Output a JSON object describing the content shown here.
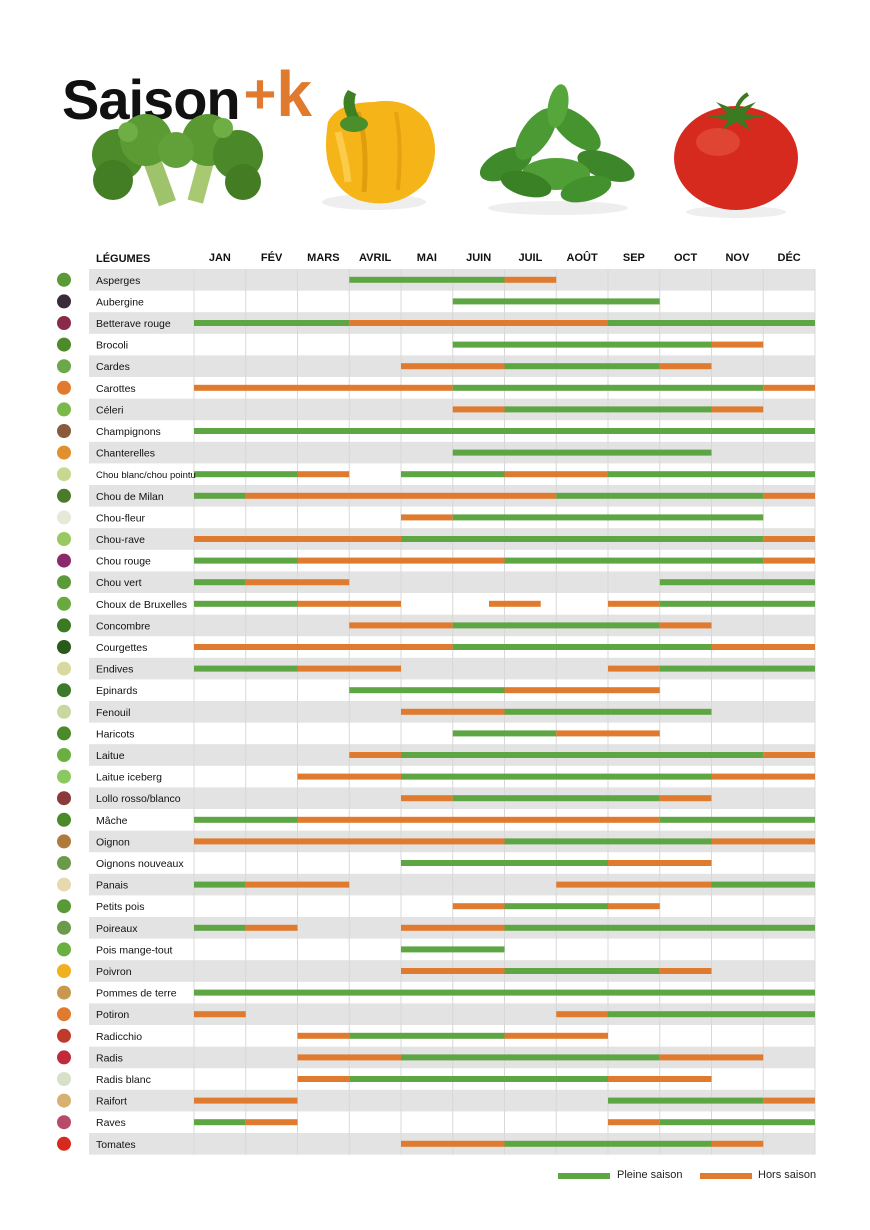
{
  "brand": {
    "word": "Saison",
    "plus": "+",
    "k": "k"
  },
  "images": [
    {
      "name": "broccoli",
      "icon": "broccoli-image"
    },
    {
      "name": "yellow-pepper",
      "icon": "pepper-image"
    },
    {
      "name": "lambs-lettuce",
      "icon": "salad-image"
    },
    {
      "name": "tomato",
      "icon": "tomato-image"
    }
  ],
  "colors": {
    "pleine": "#5ea544",
    "hors": "#e07a2e",
    "row_alt": "#e3e3e3",
    "grid": "#ffffff"
  },
  "chart_data": {
    "type": "table",
    "header": "LÉGUMES",
    "months": [
      "JAN",
      "FÉV",
      "MARS",
      "AVRIL",
      "MAI",
      "JUIN",
      "JUIL",
      "AOÛT",
      "SEP",
      "OCT",
      "NOV",
      "DÉC"
    ],
    "legend": {
      "pleine": "Pleine saison",
      "hors": "Hors saison"
    },
    "rows": [
      {
        "name": "Asperges",
        "segments": [
          {
            "s": 3,
            "e": 6,
            "t": "g"
          },
          {
            "s": 6,
            "e": 7,
            "t": "o"
          }
        ]
      },
      {
        "name": "Aubergine",
        "segments": [
          {
            "s": 5,
            "e": 9,
            "t": "g"
          }
        ]
      },
      {
        "name": "Betterave rouge",
        "segments": [
          {
            "s": 0,
            "e": 3,
            "t": "g"
          },
          {
            "s": 3,
            "e": 8,
            "t": "o"
          },
          {
            "s": 8,
            "e": 12,
            "t": "g"
          }
        ]
      },
      {
        "name": "Brocoli",
        "segments": [
          {
            "s": 5,
            "e": 10,
            "t": "g"
          },
          {
            "s": 10,
            "e": 11,
            "t": "o"
          }
        ]
      },
      {
        "name": "Cardes",
        "segments": [
          {
            "s": 4,
            "e": 6,
            "t": "o"
          },
          {
            "s": 6,
            "e": 9,
            "t": "g"
          },
          {
            "s": 9,
            "e": 10,
            "t": "o"
          }
        ]
      },
      {
        "name": "Carottes",
        "segments": [
          {
            "s": 0,
            "e": 5,
            "t": "o"
          },
          {
            "s": 5,
            "e": 11,
            "t": "g"
          },
          {
            "s": 11,
            "e": 12,
            "t": "o"
          }
        ]
      },
      {
        "name": "Céleri",
        "segments": [
          {
            "s": 5,
            "e": 6,
            "t": "o"
          },
          {
            "s": 6,
            "e": 10,
            "t": "g"
          },
          {
            "s": 10,
            "e": 11,
            "t": "o"
          }
        ]
      },
      {
        "name": "Champignons",
        "segments": [
          {
            "s": 0,
            "e": 12,
            "t": "g"
          }
        ]
      },
      {
        "name": "Chanterelles",
        "segments": [
          {
            "s": 5,
            "e": 10,
            "t": "g"
          }
        ]
      },
      {
        "name": "Chou blanc/chou pointu",
        "segments": [
          {
            "s": 0,
            "e": 2,
            "t": "g"
          },
          {
            "s": 2,
            "e": 3,
            "t": "o"
          },
          {
            "s": 4,
            "e": 6,
            "t": "g"
          },
          {
            "s": 6,
            "e": 8,
            "t": "o"
          },
          {
            "s": 8,
            "e": 12,
            "t": "g"
          }
        ]
      },
      {
        "name": "Chou de Milan",
        "segments": [
          {
            "s": 0,
            "e": 1,
            "t": "g"
          },
          {
            "s": 1,
            "e": 7,
            "t": "o"
          },
          {
            "s": 7,
            "e": 11,
            "t": "g"
          },
          {
            "s": 11,
            "e": 12,
            "t": "o"
          }
        ]
      },
      {
        "name": "Chou-fleur",
        "segments": [
          {
            "s": 4,
            "e": 5,
            "t": "o"
          },
          {
            "s": 5,
            "e": 11,
            "t": "g"
          }
        ]
      },
      {
        "name": "Chou-rave",
        "segments": [
          {
            "s": 0,
            "e": 4,
            "t": "o"
          },
          {
            "s": 4,
            "e": 11,
            "t": "g"
          },
          {
            "s": 11,
            "e": 12,
            "t": "o"
          }
        ]
      },
      {
        "name": "Chou rouge",
        "segments": [
          {
            "s": 0,
            "e": 2,
            "t": "g"
          },
          {
            "s": 2,
            "e": 6,
            "t": "o"
          },
          {
            "s": 6,
            "e": 11,
            "t": "g"
          },
          {
            "s": 11,
            "e": 12,
            "t": "o"
          }
        ]
      },
      {
        "name": "Chou vert",
        "segments": [
          {
            "s": 0,
            "e": 1,
            "t": "g"
          },
          {
            "s": 1,
            "e": 3,
            "t": "o"
          },
          {
            "s": 9,
            "e": 12,
            "t": "g"
          }
        ]
      },
      {
        "name": "Choux de Bruxelles",
        "segments": [
          {
            "s": 0,
            "e": 2,
            "t": "g"
          },
          {
            "s": 2,
            "e": 4,
            "t": "o"
          },
          {
            "s": 5.7,
            "e": 6.7,
            "t": "o"
          },
          {
            "s": 8,
            "e": 9,
            "t": "o"
          },
          {
            "s": 9,
            "e": 12,
            "t": "g"
          }
        ]
      },
      {
        "name": "Concombre",
        "segments": [
          {
            "s": 3,
            "e": 5,
            "t": "o"
          },
          {
            "s": 5,
            "e": 9,
            "t": "g"
          },
          {
            "s": 9,
            "e": 10,
            "t": "o"
          }
        ]
      },
      {
        "name": "Courgettes",
        "segments": [
          {
            "s": 0,
            "e": 5,
            "t": "o"
          },
          {
            "s": 5,
            "e": 10,
            "t": "g"
          },
          {
            "s": 10,
            "e": 12,
            "t": "o"
          }
        ]
      },
      {
        "name": "Endives",
        "segments": [
          {
            "s": 0,
            "e": 2,
            "t": "g"
          },
          {
            "s": 2,
            "e": 4,
            "t": "o"
          },
          {
            "s": 8,
            "e": 9,
            "t": "o"
          },
          {
            "s": 9,
            "e": 12,
            "t": "g"
          }
        ]
      },
      {
        "name": "Epinards",
        "segments": [
          {
            "s": 3,
            "e": 6,
            "t": "g"
          },
          {
            "s": 6,
            "e": 9,
            "t": "o"
          }
        ]
      },
      {
        "name": "Fenouil",
        "segments": [
          {
            "s": 4,
            "e": 6,
            "t": "o"
          },
          {
            "s": 6,
            "e": 10,
            "t": "g"
          }
        ]
      },
      {
        "name": "Haricots",
        "segments": [
          {
            "s": 5,
            "e": 7,
            "t": "g"
          },
          {
            "s": 7,
            "e": 9,
            "t": "o"
          }
        ]
      },
      {
        "name": "Laitue",
        "segments": [
          {
            "s": 3,
            "e": 4,
            "t": "o"
          },
          {
            "s": 4,
            "e": 11,
            "t": "g"
          },
          {
            "s": 11,
            "e": 12,
            "t": "o"
          }
        ]
      },
      {
        "name": "Laitue iceberg",
        "segments": [
          {
            "s": 2,
            "e": 4,
            "t": "o"
          },
          {
            "s": 4,
            "e": 10,
            "t": "g"
          },
          {
            "s": 10,
            "e": 12,
            "t": "o"
          }
        ]
      },
      {
        "name": "Lollo rosso/blanco",
        "segments": [
          {
            "s": 4,
            "e": 5,
            "t": "o"
          },
          {
            "s": 5,
            "e": 9,
            "t": "g"
          },
          {
            "s": 9,
            "e": 10,
            "t": "o"
          }
        ]
      },
      {
        "name": "Mâche",
        "segments": [
          {
            "s": 0,
            "e": 2,
            "t": "g"
          },
          {
            "s": 2,
            "e": 9,
            "t": "o"
          },
          {
            "s": 9,
            "e": 12,
            "t": "g"
          }
        ]
      },
      {
        "name": "Oignon",
        "segments": [
          {
            "s": 0,
            "e": 6,
            "t": "o"
          },
          {
            "s": 6,
            "e": 10,
            "t": "g"
          },
          {
            "s": 10,
            "e": 12,
            "t": "o"
          }
        ]
      },
      {
        "name": "Oignons nouveaux",
        "segments": [
          {
            "s": 4,
            "e": 8,
            "t": "g"
          },
          {
            "s": 8,
            "e": 10,
            "t": "o"
          }
        ]
      },
      {
        "name": "Panais",
        "segments": [
          {
            "s": 0,
            "e": 1,
            "t": "g"
          },
          {
            "s": 1,
            "e": 3,
            "t": "o"
          },
          {
            "s": 7,
            "e": 10,
            "t": "o"
          },
          {
            "s": 10,
            "e": 12,
            "t": "g"
          }
        ]
      },
      {
        "name": "Petits pois",
        "segments": [
          {
            "s": 5,
            "e": 6,
            "t": "o"
          },
          {
            "s": 6,
            "e": 8,
            "t": "g"
          },
          {
            "s": 8,
            "e": 9,
            "t": "o"
          }
        ]
      },
      {
        "name": "Poireaux",
        "segments": [
          {
            "s": 0,
            "e": 1,
            "t": "g"
          },
          {
            "s": 1,
            "e": 2,
            "t": "o"
          },
          {
            "s": 4,
            "e": 6,
            "t": "o"
          },
          {
            "s": 6,
            "e": 12,
            "t": "g"
          }
        ]
      },
      {
        "name": "Pois mange-tout",
        "segments": [
          {
            "s": 4,
            "e": 6,
            "t": "g"
          }
        ]
      },
      {
        "name": "Poivron",
        "segments": [
          {
            "s": 4,
            "e": 6,
            "t": "o"
          },
          {
            "s": 6,
            "e": 9,
            "t": "g"
          },
          {
            "s": 9,
            "e": 10,
            "t": "o"
          }
        ]
      },
      {
        "name": "Pommes de terre",
        "segments": [
          {
            "s": 0,
            "e": 12,
            "t": "g"
          }
        ]
      },
      {
        "name": "Potiron",
        "segments": [
          {
            "s": 0,
            "e": 1,
            "t": "o"
          },
          {
            "s": 7,
            "e": 8,
            "t": "o"
          },
          {
            "s": 8,
            "e": 12,
            "t": "g"
          }
        ]
      },
      {
        "name": "Radicchio",
        "segments": [
          {
            "s": 2,
            "e": 3,
            "t": "o"
          },
          {
            "s": 3,
            "e": 6,
            "t": "g"
          },
          {
            "s": 6,
            "e": 8,
            "t": "o"
          }
        ]
      },
      {
        "name": "Radis",
        "segments": [
          {
            "s": 2,
            "e": 4,
            "t": "o"
          },
          {
            "s": 4,
            "e": 9,
            "t": "g"
          },
          {
            "s": 9,
            "e": 11,
            "t": "o"
          }
        ]
      },
      {
        "name": "Radis blanc",
        "segments": [
          {
            "s": 2,
            "e": 3,
            "t": "o"
          },
          {
            "s": 3,
            "e": 8,
            "t": "g"
          },
          {
            "s": 8,
            "e": 10,
            "t": "o"
          }
        ]
      },
      {
        "name": "Raifort",
        "segments": [
          {
            "s": 0,
            "e": 2,
            "t": "o"
          },
          {
            "s": 8,
            "e": 11,
            "t": "g"
          },
          {
            "s": 11,
            "e": 12,
            "t": "o"
          }
        ]
      },
      {
        "name": "Raves",
        "segments": [
          {
            "s": 0,
            "e": 1,
            "t": "g"
          },
          {
            "s": 1,
            "e": 2,
            "t": "o"
          },
          {
            "s": 8,
            "e": 9,
            "t": "o"
          },
          {
            "s": 9,
            "e": 12,
            "t": "g"
          }
        ]
      },
      {
        "name": "Tomates",
        "segments": [
          {
            "s": 4,
            "e": 6,
            "t": "o"
          },
          {
            "s": 6,
            "e": 10,
            "t": "g"
          },
          {
            "s": 10,
            "e": 11,
            "t": "o"
          }
        ]
      }
    ]
  }
}
